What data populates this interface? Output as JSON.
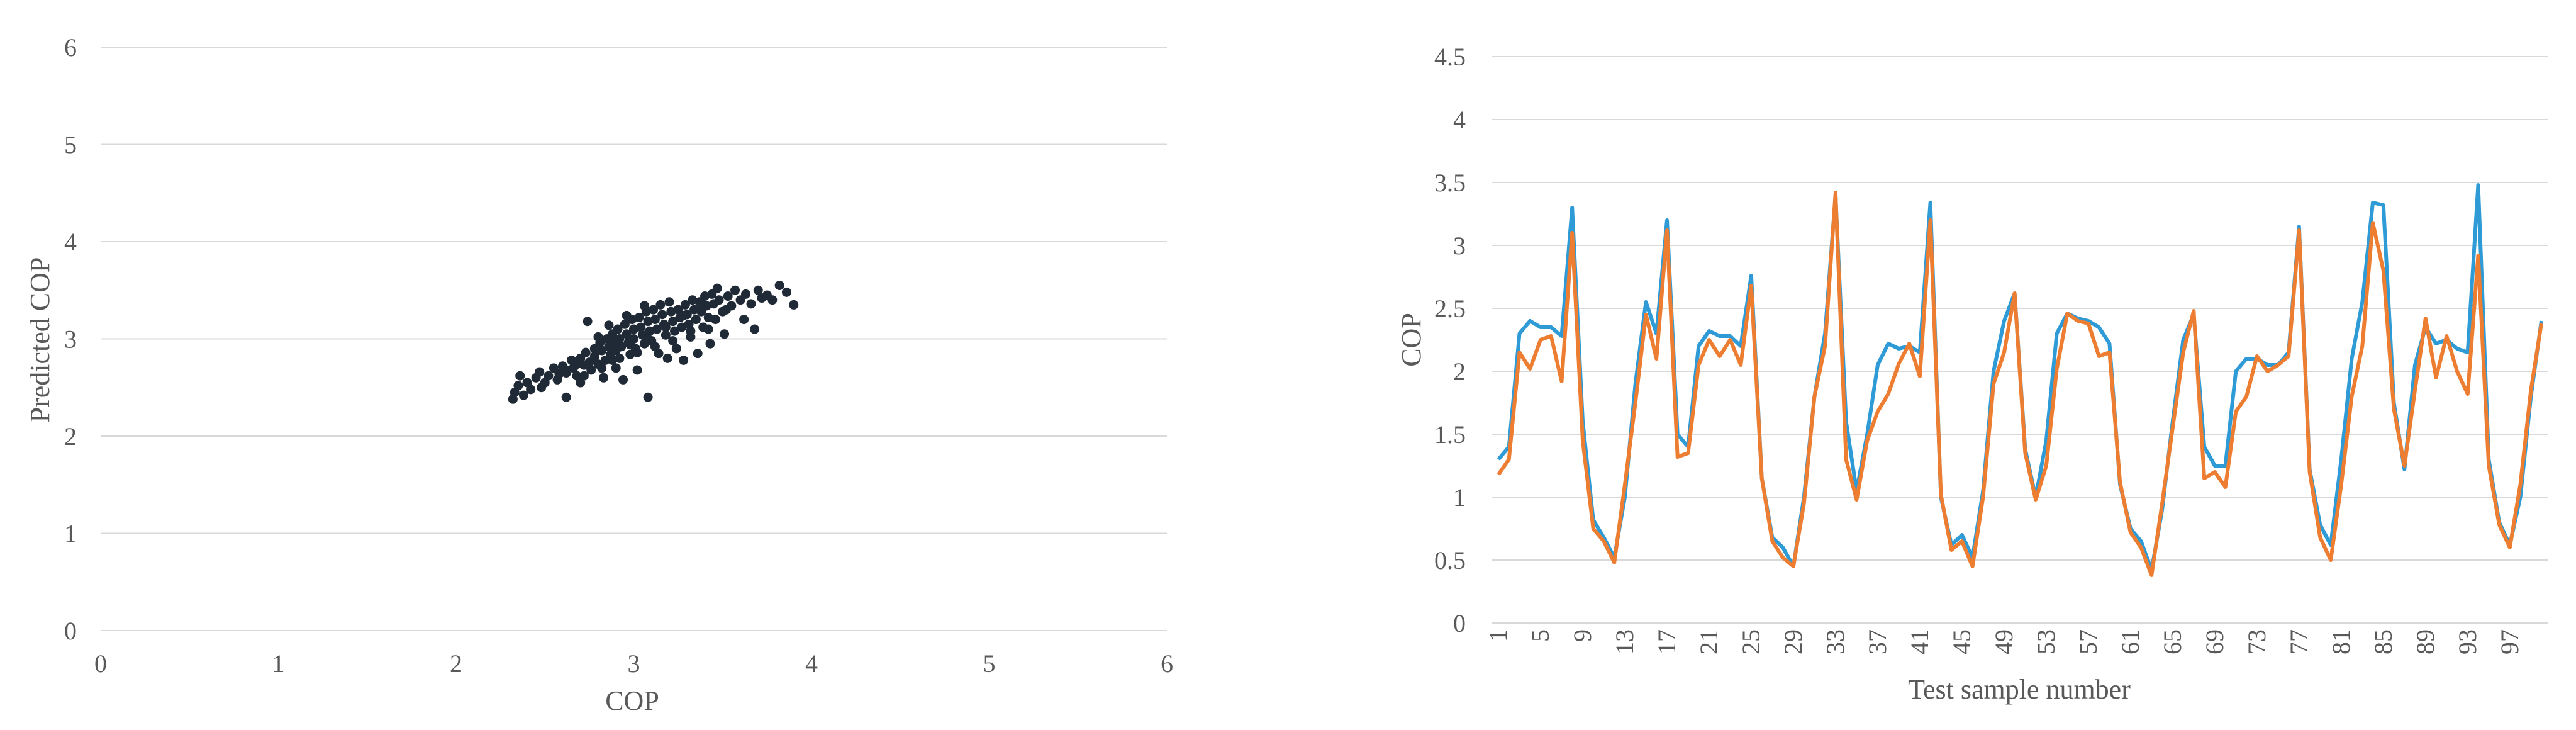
{
  "chart_data": [
    {
      "type": "scatter",
      "xlabel": "COP",
      "ylabel": "Predicted COP",
      "xlim": [
        0,
        6
      ],
      "ylim": [
        0,
        6
      ],
      "x_ticks": [
        "0",
        "1",
        "2",
        "3",
        "4",
        "5",
        "6"
      ],
      "y_ticks": [
        "0",
        "1",
        "2",
        "3",
        "4",
        "5",
        "6"
      ],
      "grid": "horizontal",
      "marker_color": "#1f2a36",
      "points": [
        [
          2.32,
          2.38
        ],
        [
          2.33,
          2.45
        ],
        [
          2.35,
          2.52
        ],
        [
          2.36,
          2.62
        ],
        [
          2.4,
          2.55
        ],
        [
          2.42,
          2.48
        ],
        [
          2.45,
          2.6
        ],
        [
          2.47,
          2.66
        ],
        [
          2.5,
          2.55
        ],
        [
          2.52,
          2.62
        ],
        [
          2.55,
          2.7
        ],
        [
          2.57,
          2.58
        ],
        [
          2.6,
          2.72
        ],
        [
          2.62,
          2.65
        ],
        [
          2.62,
          2.4
        ],
        [
          2.65,
          2.78
        ],
        [
          2.66,
          2.7
        ],
        [
          2.68,
          2.62
        ],
        [
          2.7,
          2.8
        ],
        [
          2.7,
          2.55
        ],
        [
          2.72,
          2.73
        ],
        [
          2.73,
          2.86
        ],
        [
          2.75,
          2.76
        ],
        [
          2.76,
          2.68
        ],
        [
          2.78,
          2.9
        ],
        [
          2.78,
          2.82
        ],
        [
          2.8,
          2.74
        ],
        [
          2.81,
          2.96
        ],
        [
          2.82,
          2.88
        ],
        [
          2.83,
          2.6
        ],
        [
          2.84,
          2.78
        ],
        [
          2.85,
          3.0
        ],
        [
          2.86,
          2.92
        ],
        [
          2.87,
          2.84
        ],
        [
          2.88,
          3.05
        ],
        [
          2.89,
          2.96
        ],
        [
          2.9,
          2.7
        ],
        [
          2.9,
          2.88
        ],
        [
          2.91,
          3.1
        ],
        [
          2.92,
          3.0
        ],
        [
          2.93,
          2.92
        ],
        [
          2.94,
          2.58
        ],
        [
          2.95,
          3.15
        ],
        [
          2.96,
          3.05
        ],
        [
          2.97,
          2.96
        ],
        [
          2.98,
          2.84
        ],
        [
          2.99,
          3.2
        ],
        [
          3.0,
          3.1
        ],
        [
          3.0,
          3.0
        ],
        [
          3.01,
          2.9
        ],
        [
          3.02,
          2.68
        ],
        [
          3.03,
          3.22
        ],
        [
          3.04,
          3.12
        ],
        [
          3.05,
          3.04
        ],
        [
          3.06,
          2.95
        ],
        [
          3.07,
          3.28
        ],
        [
          3.08,
          3.18
        ],
        [
          3.08,
          2.4
        ],
        [
          3.09,
          3.08
        ],
        [
          3.1,
          2.98
        ],
        [
          3.11,
          3.3
        ],
        [
          3.12,
          3.2
        ],
        [
          3.13,
          3.1
        ],
        [
          3.14,
          2.85
        ],
        [
          3.15,
          3.35
        ],
        [
          3.16,
          3.25
        ],
        [
          3.17,
          3.15
        ],
        [
          3.18,
          3.04
        ],
        [
          3.19,
          2.8
        ],
        [
          3.2,
          3.38
        ],
        [
          3.21,
          3.28
        ],
        [
          3.22,
          3.18
        ],
        [
          3.23,
          3.08
        ],
        [
          3.24,
          2.9
        ],
        [
          3.25,
          3.3
        ],
        [
          3.26,
          3.22
        ],
        [
          3.27,
          3.12
        ],
        [
          3.28,
          2.78
        ],
        [
          3.29,
          3.35
        ],
        [
          3.3,
          3.25
        ],
        [
          3.31,
          3.15
        ],
        [
          3.32,
          3.02
        ],
        [
          3.33,
          3.4
        ],
        [
          3.34,
          3.3
        ],
        [
          3.35,
          3.2
        ],
        [
          3.36,
          2.85
        ],
        [
          3.37,
          3.38
        ],
        [
          3.38,
          3.28
        ],
        [
          3.39,
          3.12
        ],
        [
          3.4,
          3.44
        ],
        [
          3.41,
          3.34
        ],
        [
          3.42,
          3.22
        ],
        [
          3.43,
          2.95
        ],
        [
          3.44,
          3.46
        ],
        [
          3.45,
          3.36
        ],
        [
          3.46,
          3.2
        ],
        [
          3.47,
          3.52
        ],
        [
          3.48,
          3.4
        ],
        [
          3.5,
          3.28
        ],
        [
          3.51,
          3.05
        ],
        [
          3.53,
          3.44
        ],
        [
          3.55,
          3.34
        ],
        [
          3.57,
          3.5
        ],
        [
          3.6,
          3.4
        ],
        [
          3.62,
          3.2
        ],
        [
          3.63,
          3.46
        ],
        [
          3.66,
          3.36
        ],
        [
          3.68,
          3.1
        ],
        [
          3.7,
          3.5
        ],
        [
          3.72,
          3.42
        ],
        [
          3.75,
          3.45
        ],
        [
          3.78,
          3.4
        ],
        [
          3.82,
          3.55
        ],
        [
          3.86,
          3.48
        ],
        [
          3.9,
          3.35
        ],
        [
          2.38,
          2.42
        ],
        [
          2.48,
          2.5
        ],
        [
          2.58,
          2.64
        ],
        [
          2.68,
          2.74
        ],
        [
          2.88,
          2.78
        ],
        [
          2.98,
          2.94
        ],
        [
          3.08,
          3.0
        ],
        [
          3.18,
          3.12
        ],
        [
          3.28,
          3.24
        ],
        [
          3.38,
          3.36
        ],
        [
          2.62,
          2.68
        ],
        [
          2.72,
          2.62
        ],
        [
          2.82,
          2.7
        ],
        [
          2.92,
          2.8
        ],
        [
          3.02,
          2.86
        ],
        [
          3.12,
          2.92
        ],
        [
          3.22,
          2.98
        ],
        [
          3.32,
          3.08
        ],
        [
          3.42,
          3.1
        ],
        [
          3.52,
          3.3
        ],
        [
          2.74,
          3.18
        ],
        [
          2.8,
          3.02
        ],
        [
          2.86,
          3.14
        ],
        [
          2.96,
          3.24
        ],
        [
          3.06,
          3.34
        ]
      ]
    },
    {
      "type": "line",
      "xlabel": "Test sample number",
      "ylabel": "COP",
      "ylim": [
        0,
        4.5
      ],
      "y_ticks": [
        "0",
        "0.5",
        "1",
        "1.5",
        "2",
        "2.5",
        "3",
        "3.5",
        "4",
        "4.5"
      ],
      "x_tick_labels": [
        "1",
        "5",
        "9",
        "13",
        "17",
        "21",
        "25",
        "29",
        "33",
        "37",
        "41",
        "45",
        "49",
        "53",
        "57",
        "61",
        "65",
        "69",
        "73",
        "77",
        "81",
        "85",
        "89",
        "93",
        "97"
      ],
      "x_tick_step": 4,
      "grid": "horizontal",
      "series": [
        {
          "color": "#2e9bd6",
          "values": [
            1.3,
            1.4,
            2.3,
            2.4,
            2.35,
            2.35,
            2.28,
            3.3,
            1.6,
            0.82,
            0.68,
            0.52,
            1.0,
            1.9,
            2.55,
            2.3,
            3.2,
            1.5,
            1.4,
            2.2,
            2.32,
            2.28,
            2.28,
            2.2,
            2.76,
            1.15,
            0.68,
            0.6,
            0.45,
            1.0,
            1.8,
            2.3,
            3.4,
            1.6,
            1.05,
            1.5,
            2.05,
            2.22,
            2.18,
            2.2,
            2.15,
            3.34,
            1.0,
            0.62,
            0.7,
            0.52,
            1.05,
            2.0,
            2.4,
            2.62,
            1.38,
            1.0,
            1.45,
            2.3,
            2.46,
            2.42,
            2.4,
            2.35,
            2.22,
            1.1,
            0.75,
            0.65,
            0.42,
            0.9,
            1.6,
            2.25,
            2.45,
            1.4,
            1.25,
            1.25,
            2.0,
            2.1,
            2.1,
            2.05,
            2.05,
            2.15,
            3.15,
            1.22,
            0.78,
            0.62,
            1.3,
            2.1,
            2.55,
            3.34,
            3.32,
            1.75,
            1.22,
            2.05,
            2.35,
            2.22,
            2.25,
            2.18,
            2.15,
            3.48,
            1.3,
            0.8,
            0.62,
            1.0,
            1.8,
            2.4
          ]
        },
        {
          "color": "#ed7d31",
          "values": [
            1.18,
            1.3,
            2.15,
            2.02,
            2.25,
            2.28,
            1.92,
            3.1,
            1.45,
            0.75,
            0.65,
            0.48,
            1.1,
            1.75,
            2.45,
            2.1,
            3.12,
            1.32,
            1.35,
            2.05,
            2.25,
            2.12,
            2.25,
            2.05,
            2.68,
            1.15,
            0.65,
            0.52,
            0.45,
            0.95,
            1.8,
            2.2,
            3.42,
            1.3,
            0.98,
            1.45,
            1.68,
            1.82,
            2.06,
            2.22,
            1.96,
            3.2,
            1.02,
            0.58,
            0.65,
            0.45,
            1.0,
            1.9,
            2.15,
            2.62,
            1.35,
            0.98,
            1.25,
            2.02,
            2.46,
            2.4,
            2.38,
            2.12,
            2.15,
            1.12,
            0.72,
            0.6,
            0.38,
            0.95,
            1.55,
            2.15,
            2.48,
            1.15,
            1.2,
            1.08,
            1.68,
            1.8,
            2.12,
            2.0,
            2.05,
            2.12,
            3.12,
            1.2,
            0.68,
            0.5,
            1.1,
            1.8,
            2.2,
            3.18,
            2.8,
            1.7,
            1.25,
            1.85,
            2.42,
            1.95,
            2.28,
            2.0,
            1.82,
            2.92,
            1.25,
            0.78,
            0.6,
            1.1,
            1.85,
            2.38
          ]
        }
      ]
    }
  ]
}
